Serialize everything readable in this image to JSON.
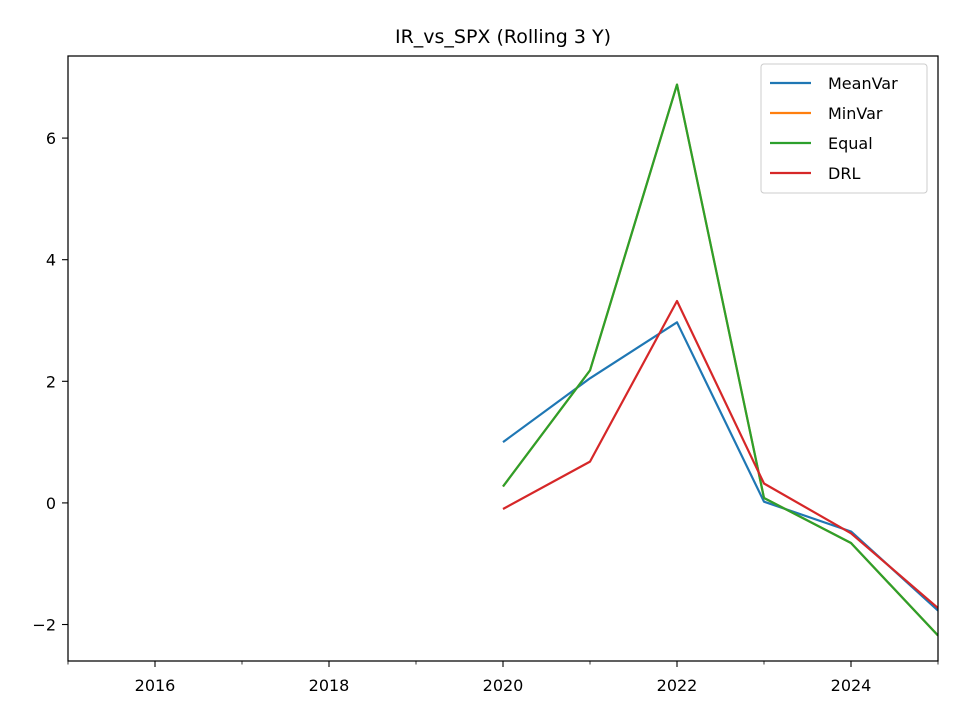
{
  "chart_data": {
    "type": "line",
    "title": "IR_vs_SPX (Rolling 3 Y)",
    "xlabel": "",
    "ylabel": "",
    "xlim": [
      2015,
      2025
    ],
    "ylim": [
      -2.6,
      7.35
    ],
    "x_ticks": [
      2016,
      2018,
      2020,
      2022,
      2024
    ],
    "x_minor_ticks": [
      2015,
      2017,
      2019,
      2021,
      2023,
      2025
    ],
    "x_tick_labels": [
      "2016",
      "2018",
      "2020",
      "2022",
      "2024"
    ],
    "y_ticks": [
      -2,
      0,
      2,
      4,
      6
    ],
    "y_tick_labels": [
      "−2",
      "0",
      "2",
      "4",
      "6"
    ],
    "grid": false,
    "legend_position": "top-right",
    "x": [
      2020,
      2021,
      2022,
      2023,
      2024,
      2025
    ],
    "series": [
      {
        "name": "MeanVar",
        "color": "#1f77b4",
        "values": [
          1.0,
          2.05,
          2.97,
          0.02,
          -0.47,
          -1.77
        ]
      },
      {
        "name": "MinVar",
        "color": "#ff7f0e",
        "values": [
          0.27,
          2.18,
          6.88,
          0.08,
          -0.66,
          -2.18
        ]
      },
      {
        "name": "Equal",
        "color": "#2ca02c",
        "values": [
          0.27,
          2.18,
          6.88,
          0.08,
          -0.66,
          -2.18
        ]
      },
      {
        "name": "DRL",
        "color": "#d62728",
        "values": [
          -0.1,
          0.68,
          3.32,
          0.32,
          -0.5,
          -1.73
        ]
      }
    ]
  }
}
